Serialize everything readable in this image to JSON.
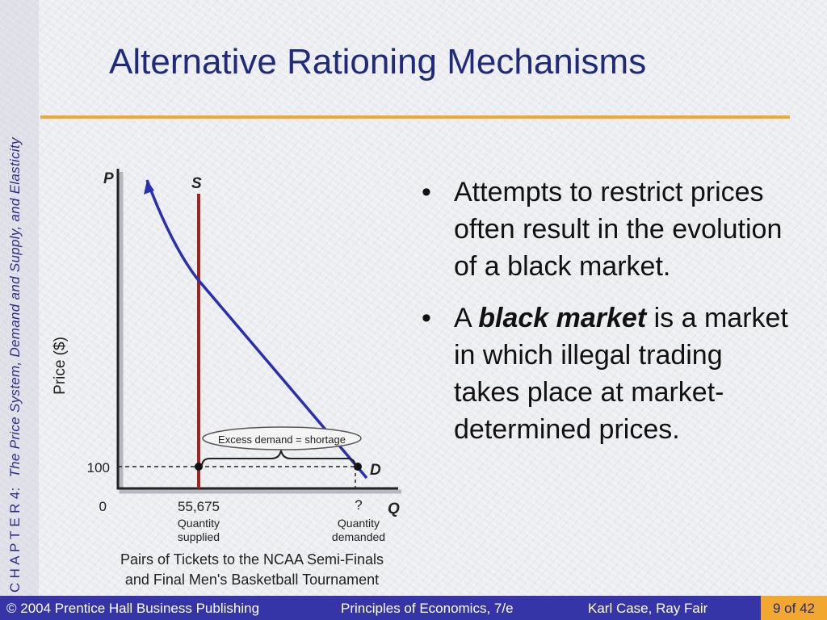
{
  "sidebar": {
    "chapter_prefix": "C H A P T E R  4:",
    "chapter_title": "The Price System, Demand and Supply, and Elasticity"
  },
  "title": "Alternative Rationing Mechanisms",
  "diagram": {
    "p_axis": "P",
    "q_axis": "Q",
    "supply_label": "S",
    "demand_label": "D",
    "y_axis_title": "Price ($)",
    "price_tick": "100",
    "origin": "0",
    "qty_supplied_value": "55,675",
    "qty_supplied_line1": "Quantity",
    "qty_supplied_line2": "supplied",
    "qty_demanded_value": "?",
    "qty_demanded_line1": "Quantity",
    "qty_demanded_line2": "demanded",
    "excess_label": "Excess demand = shortage",
    "x_title_line1": "Pairs of Tickets to the NCAA Semi-Finals",
    "x_title_line2": "and Final Men's Basketball Tournament"
  },
  "bullets": {
    "b1": "Attempts to restrict prices often result in the evolution of a black market.",
    "b2_prefix": "A ",
    "b2_term": "black market",
    "b2_rest": " is a market in which illegal trading takes place at market-determined prices."
  },
  "footer": {
    "publisher": "© 2004 Prentice Hall Business Publishing",
    "book": "Principles of Economics, 7/e",
    "authors": "Karl Case, Ray Fair",
    "page": "9 of 42"
  },
  "colors": {
    "title": "#1f2a7a",
    "rule": "#f2a830",
    "supply": "#a0241e",
    "demand": "#2a2fb0",
    "footer_bg": "#3535a8"
  }
}
